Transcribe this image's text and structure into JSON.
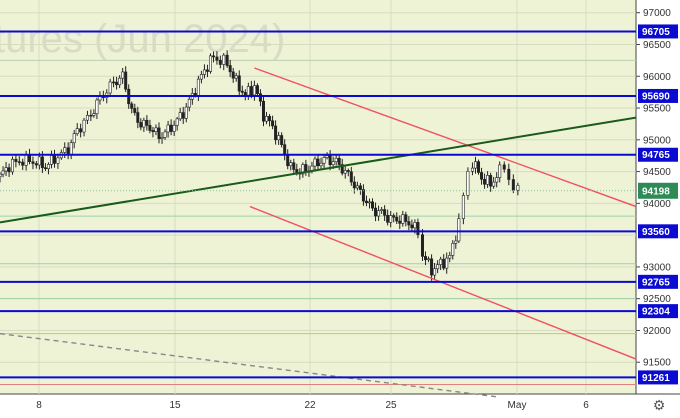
{
  "watermark": "tures (Jun 2024)",
  "chart_data": {
    "type": "candlestick",
    "title": "",
    "ylim": [
      91000,
      97200
    ],
    "y_ticks": [
      91500,
      92000,
      92500,
      93000,
      93500,
      94000,
      94500,
      95000,
      95500,
      96000,
      96500,
      97000
    ],
    "x_ticks": [
      "8",
      "15",
      "22",
      "25",
      "May",
      "6"
    ],
    "levels": [
      {
        "value": 96705,
        "label": "96705",
        "kind": "key"
      },
      {
        "value": 95690,
        "label": "95690",
        "kind": "key"
      },
      {
        "value": 94765,
        "label": "94765",
        "kind": "key"
      },
      {
        "value": 93560,
        "label": "93560",
        "kind": "key"
      },
      {
        "value": 92765,
        "label": "92765",
        "kind": "key"
      },
      {
        "value": 92304,
        "label": "92304",
        "kind": "key"
      },
      {
        "value": 91261,
        "label": "91261",
        "kind": "key"
      }
    ],
    "current_price": {
      "value": 94198,
      "label": "94198"
    },
    "trend_lines": [
      {
        "name": "upper channel",
        "color": "#f05060",
        "from": [
          56,
          96130
        ],
        "to": [
          140,
          93950
        ]
      },
      {
        "name": "lower channel",
        "color": "#f05060",
        "from": [
          55,
          93950
        ],
        "to": [
          140,
          91550
        ]
      },
      {
        "name": "rising support",
        "color": "#1a5a1a",
        "from": [
          0,
          93700
        ],
        "to": [
          140,
          95350
        ]
      },
      {
        "name": "dashed trend",
        "color": "#888888",
        "from": [
          0,
          91950
        ],
        "to": [
          110,
          90950
        ]
      }
    ],
    "price_path": [
      [
        0,
        94420
      ],
      [
        2,
        94600
      ],
      [
        5,
        94680
      ],
      [
        8,
        94650
      ],
      [
        10,
        94580
      ],
      [
        12,
        94700
      ],
      [
        15,
        94850
      ],
      [
        17,
        95150
      ],
      [
        20,
        95400
      ],
      [
        22,
        95650
      ],
      [
        25,
        95900
      ],
      [
        27,
        96000
      ],
      [
        29,
        95450
      ],
      [
        31,
        95250
      ],
      [
        33,
        95200
      ],
      [
        35,
        95050
      ],
      [
        37,
        95150
      ],
      [
        39,
        95300
      ],
      [
        41,
        95500
      ],
      [
        43,
        95800
      ],
      [
        45,
        96100
      ],
      [
        47,
        96300
      ],
      [
        50,
        96200
      ],
      [
        52,
        95900
      ],
      [
        54,
        95700
      ],
      [
        56,
        95850
      ],
      [
        58,
        95400
      ],
      [
        60,
        95200
      ],
      [
        62,
        94900
      ],
      [
        64,
        94550
      ],
      [
        66,
        94500
      ],
      [
        68,
        94550
      ],
      [
        70,
        94650
      ],
      [
        72,
        94700
      ],
      [
        74,
        94650
      ],
      [
        76,
        94500
      ],
      [
        78,
        94300
      ],
      [
        80,
        94100
      ],
      [
        82,
        93900
      ],
      [
        84,
        93850
      ],
      [
        86,
        93750
      ],
      [
        88,
        93750
      ],
      [
        90,
        93700
      ],
      [
        92,
        93550
      ],
      [
        93,
        93200
      ],
      [
        95,
        92950
      ],
      [
        97,
        93050
      ],
      [
        99,
        93150
      ],
      [
        101,
        93700
      ],
      [
        102,
        94100
      ],
      [
        103,
        94500
      ],
      [
        104,
        94650
      ],
      [
        106,
        94400
      ],
      [
        108,
        94300
      ],
      [
        110,
        94500
      ],
      [
        111,
        94600
      ],
      [
        112,
        94400
      ],
      [
        113,
        94200
      ],
      [
        114,
        94198
      ]
    ]
  }
}
